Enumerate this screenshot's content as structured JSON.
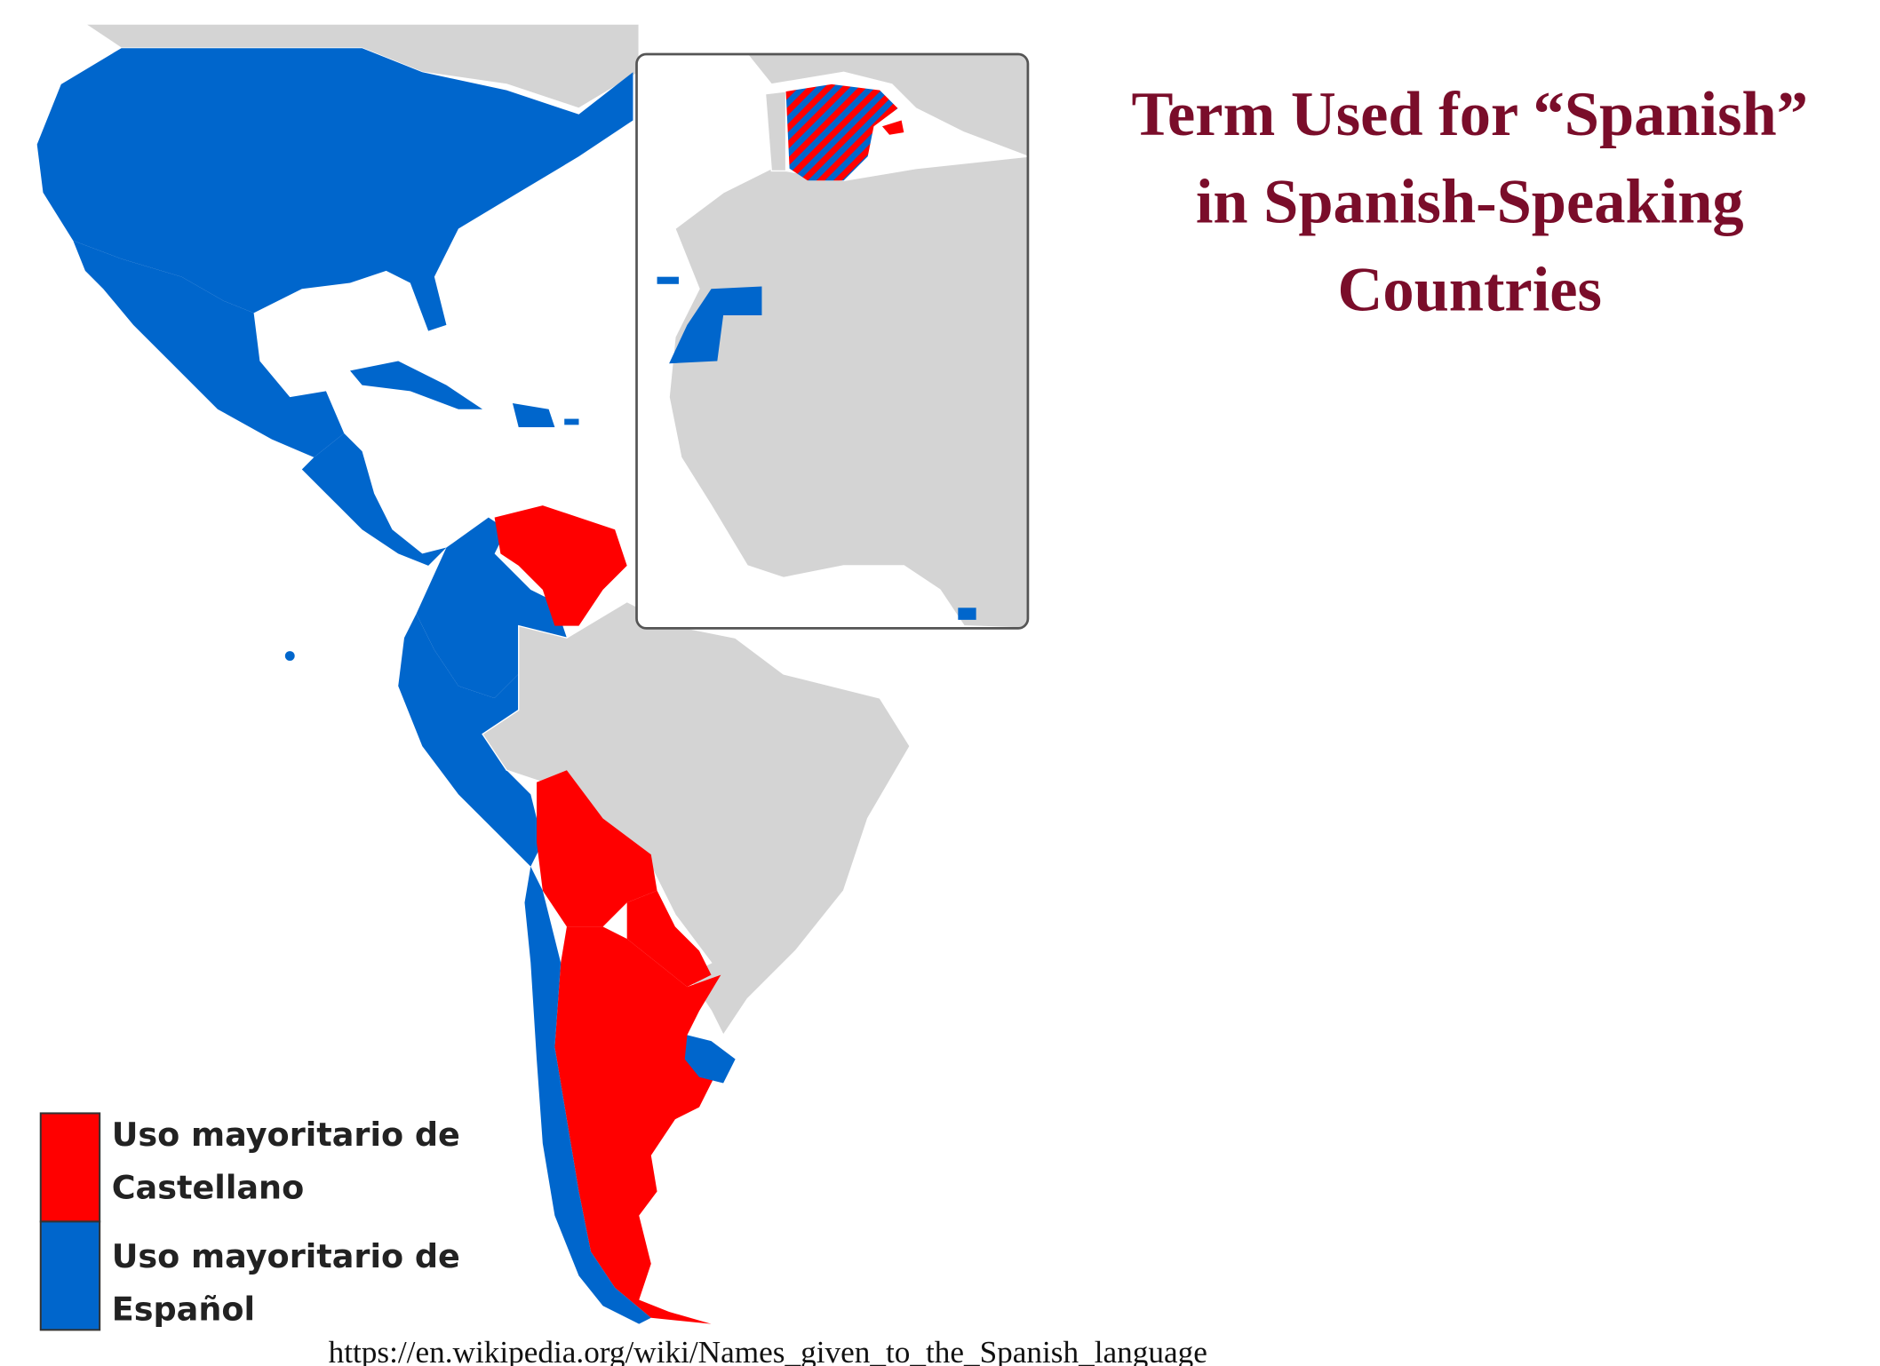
{
  "title_lines": [
    "Term Used for “Spanish”",
    "in Spanish-Speaking",
    "Countries"
  ],
  "legend": [
    {
      "lines": [
        "Uso mayoritario de",
        "Castellano"
      ],
      "color": "#ff0000"
    },
    {
      "lines": [
        "Uso mayoritario de",
        "Español"
      ],
      "color": "#0066cc"
    }
  ],
  "source": "https://en.wikipedia.org/wiki/Names_given_to_the_Spanish_language"
}
